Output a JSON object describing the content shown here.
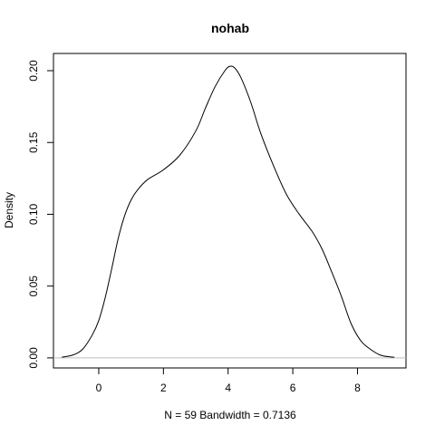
{
  "chart_data": {
    "type": "line",
    "title": "nohab",
    "xlabel": "N = 59   Bandwidth = 0.7136",
    "ylabel": "Density",
    "xlim": [
      -1.4,
      9.5
    ],
    "ylim": [
      -0.007,
      0.212
    ],
    "x_ticks": [
      0,
      2,
      4,
      6,
      8
    ],
    "x_tick_labels": [
      "0",
      "2",
      "4",
      "6",
      "8"
    ],
    "y_ticks": [
      0.0,
      0.05,
      0.1,
      0.15,
      0.2
    ],
    "y_tick_labels": [
      "0.00",
      "0.05",
      "0.10",
      "0.15",
      "0.20"
    ],
    "baseline": 0,
    "grid": false,
    "legend": false,
    "series": [
      {
        "color": "#000000",
        "x": [
          -1.14,
          -0.8,
          -0.5,
          -0.2,
          0.0,
          0.2,
          0.4,
          0.6,
          0.8,
          1.0,
          1.2,
          1.5,
          2.0,
          2.5,
          3.0,
          3.3,
          3.6,
          3.9,
          4.05,
          4.2,
          4.4,
          4.7,
          5.0,
          5.4,
          5.8,
          6.2,
          6.6,
          6.9,
          7.2,
          7.5,
          7.8,
          8.1,
          8.4,
          8.7,
          9.0,
          9.14
        ],
        "y": [
          0.0005,
          0.002,
          0.006,
          0.016,
          0.026,
          0.042,
          0.062,
          0.083,
          0.099,
          0.11,
          0.117,
          0.124,
          0.131,
          0.141,
          0.158,
          0.174,
          0.189,
          0.2,
          0.203,
          0.202,
          0.195,
          0.178,
          0.157,
          0.134,
          0.114,
          0.1,
          0.088,
          0.076,
          0.06,
          0.043,
          0.024,
          0.012,
          0.006,
          0.002,
          0.0007,
          0.0005
        ]
      }
    ]
  }
}
